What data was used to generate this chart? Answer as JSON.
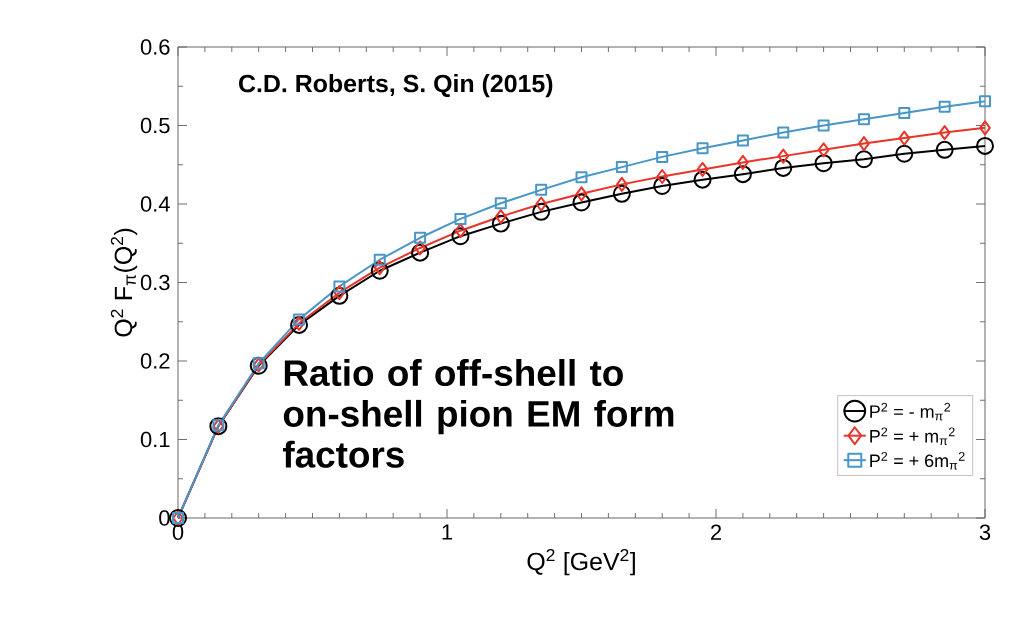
{
  "chart_data": {
    "type": "line",
    "xlabel": "Q$^{2}$ [GeV$^{2}$]",
    "ylabel": "Q$^{2}$ F$_{π}$(Q$^{2}$)",
    "x": [
      0,
      0.15,
      0.3,
      0.45,
      0.6,
      0.75,
      0.9,
      1.05,
      1.2,
      1.35,
      1.5,
      1.65,
      1.8,
      1.95,
      2.1,
      2.25,
      2.4,
      2.55,
      2.7,
      2.85,
      3.0
    ],
    "series": [
      {
        "name": "P$^{2}$ = - m$_{π}$$^{2}$",
        "color": "#000000",
        "marker": "circle",
        "values": [
          0,
          0.117,
          0.194,
          0.246,
          0.283,
          0.315,
          0.338,
          0.359,
          0.375,
          0.39,
          0.402,
          0.413,
          0.423,
          0.431,
          0.438,
          0.446,
          0.452,
          0.457,
          0.464,
          0.469,
          0.474
        ]
      },
      {
        "name": "P$^{2}$ = + m$_{π}$$^{2}$",
        "color": "#e8352a",
        "marker": "diamond",
        "values": [
          0,
          0.117,
          0.195,
          0.248,
          0.287,
          0.319,
          0.344,
          0.366,
          0.384,
          0.4,
          0.413,
          0.425,
          0.435,
          0.444,
          0.453,
          0.461,
          0.469,
          0.477,
          0.484,
          0.491,
          0.497
        ]
      },
      {
        "name": "P$^{2}$ = + 6m$_{π}$$^{2}$",
        "color": "#4a96c8",
        "marker": "square",
        "values": [
          0,
          0.118,
          0.197,
          0.253,
          0.295,
          0.329,
          0.357,
          0.381,
          0.401,
          0.418,
          0.434,
          0.447,
          0.46,
          0.471,
          0.481,
          0.491,
          0.5,
          0.508,
          0.516,
          0.524,
          0.531
        ]
      }
    ],
    "xlim": [
      0,
      3
    ],
    "xticks": [
      0,
      1,
      2,
      3
    ],
    "ylim": [
      0,
      0.6
    ],
    "yticks": [
      0,
      0.1,
      0.2,
      0.3,
      0.4,
      0.5,
      0.6
    ],
    "grid": false,
    "legend": "bottom right",
    "line_style": "solid",
    "annotations": [
      "C.D. Roberts, S. Qin (2015)",
      "Ratio of off-shell to on-shell pion EM form factors"
    ]
  }
}
